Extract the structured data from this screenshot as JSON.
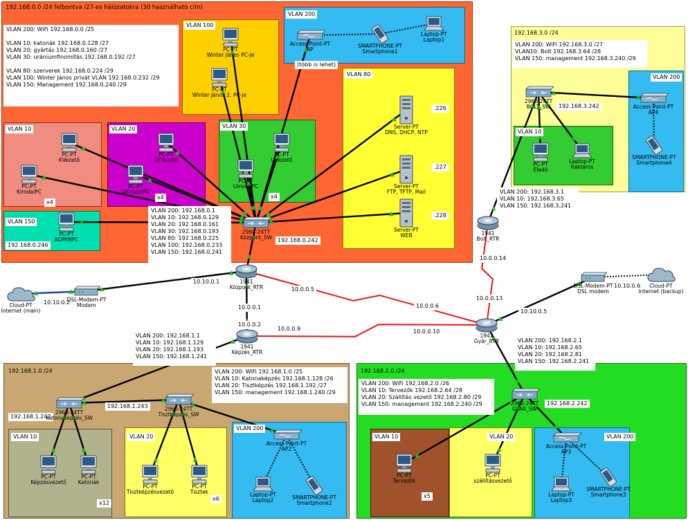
{
  "top_title": "192.168.0.0 /24  felbontva /27-es hálózatokra (30 használható cím)",
  "kozpont_info": [
    "VLAN 200: WiFi 192.168.0.0 /25",
    "",
    "VLAN 10: katonák 192.168.0.128 /27",
    "VLAN 20: gyártás 192.168.0.160 /27",
    "VLAN 30: urániumfinomítás 192.168.0.192 /27",
    "",
    "VLAN 80: szerverek 192.168.0.224 /29",
    "VLAN 100: Winter János privát VLAN 192.168.0.232 /29",
    "VLAN 150: Management 192.168.0.240 /29"
  ],
  "kozpont_sw_ips": [
    "VLAN 200: 192.168.0.1",
    "VLAN 10: 192.168.0.129",
    "VLAN 20: 192.168.0.161",
    "VLAN 30: 192.168.0.193",
    "VLAN 80: 192.168.0.225",
    "VLAN 100: 192.168.0.233",
    "VLAN 150: 192.168.0.241"
  ],
  "bolt_title": "192.168.3.0 /24",
  "bolt_info": [
    "VLAN 200: WiFi 192.168.3.0 /27",
    "VLAN10: Bolt 192.168.3.64 /28",
    "VLAN 150: management 192.168.3.240 /29"
  ],
  "bolt_rtr_ips": [
    "VLAN 200: 192.168.3.1",
    "VLAN 10: 192.168.3.65",
    "VLAN 150: 192.168.3.241"
  ],
  "kepzes_rtr_ips": [
    "VLAN 200: 192.168.1.1",
    "VLAN 10: 192.168.1.129",
    "VLAN 20: 192.168.1.193",
    "VLAN 150: 192.168.1.241"
  ],
  "kepzes_title": "192.168.1.0 /24",
  "kepzes_info": [
    "VLAN 200: WiFi 192.168.1.0 /25",
    "VLAN 10: Katonaképzés 192.168.1.128 /26",
    "VLAN 20: Tisztképzés 192.168.1.192 /27",
    "VLAN 150: management 192.168.1.240 /29"
  ],
  "gyar_rtr_ips": [
    "VLAN 200: 192.168.2.1",
    "VLAN 10: 192.168.2.65",
    "VLAN 20: 192.168.2.81",
    "VLAN 150: 192.168.2.241"
  ],
  "gyar_title": "192.168.2.0 /24",
  "gyar_info": [
    "VLAN 200: WiFi 192.168.2.0 /26",
    "VLAN 10: Tervezők 192.168.2.64 /28",
    "VLAN 20: Szállítás vezető  192.168.2.80 /29",
    "VLAN 150: management 192.168.2.240 /29"
  ],
  "vlan_labels": {
    "k100": "VLAN 100",
    "k200": "VLAN 200",
    "k10": "VLAN 10",
    "k20": "VLAN 20",
    "k30": "VLAN 30",
    "k80": "VLAN 80",
    "k150": "VLAN 150",
    "b10": "VLAN 10",
    "b200": "VLAN 200",
    "e10": "VLAN 10",
    "e20": "VLAN 20",
    "e200": "VLAN 200",
    "g10": "VLAN 10",
    "g20": "VLAN 20",
    "g200": "VLAN 200"
  },
  "devices": {
    "winter1": [
      "PC-PT",
      "Winter János PC-je"
    ],
    "winter2": [
      "PC-PT",
      "Winter János 2. PC-je"
    ],
    "ap": [
      "Access Point-PT",
      "AP"
    ],
    "smartphone1": [
      "SMARTPHONE-PT",
      "Smartphone1"
    ],
    "laptop1": [
      "Laptop-PT",
      "Laptop1"
    ],
    "kvezeto": [
      "PC-PT",
      "KVezető"
    ],
    "kirodaipc": [
      "PC-PT",
      "KirodaiPC"
    ],
    "gyvezeto": [
      "PC-PT",
      "GYVezető"
    ],
    "gyirodaipc": [
      "PC-PT",
      "GYirodaiPC"
    ],
    "uvezeto": [
      "PC-PT",
      "UVezető"
    ],
    "urodaipc": [
      "PC-PT",
      "UirodaiPC"
    ],
    "dns": [
      "Server-PT",
      "DNS, DHCP, NTP"
    ],
    "ftp": [
      "Server-PT",
      "FTP, TFTP, Mail"
    ],
    "web": [
      "Server-PT",
      "WEB"
    ],
    "adminpc": [
      "PC-PT",
      "ADMINPC"
    ],
    "kozpont_sw": [
      "2960-24TT",
      "Központ_SW"
    ],
    "kozpont_rtr": [
      "1941",
      "Központ_RTR"
    ],
    "cloud_main": [
      "Cloud-PT",
      "Internet (main)"
    ],
    "modem": [
      "DSL-Modem-PT",
      "Modem"
    ],
    "kepzes_rtr": [
      "1941",
      "Képzés_RTR"
    ],
    "bolt_rtr": [
      "1941",
      "Bolt_RTR"
    ],
    "bolt_sw": [
      "2960-24TT",
      "BOLT_SW"
    ],
    "elado": [
      "PC-PT",
      "Eladó"
    ],
    "raktaros": [
      "Laptop-PT",
      "Raktáros"
    ],
    "ap4": [
      "Access Point-PT",
      "AP4"
    ],
    "smartphone4": [
      "SMARTPHONE-PT",
      "Smartphone4"
    ],
    "gyar_rtr": [
      "1941",
      "Gyár_RTR"
    ],
    "dsl_modem": [
      "DSL-Modem-PT",
      "DSL modem"
    ],
    "cloud_backup": [
      "Cloud-PT",
      "Internet (backup)"
    ],
    "katonakepzes_sw": [
      "2960-24TT",
      "Katonaképzés_SW"
    ],
    "tisztkepzes_sw": [
      "2960-24TT",
      "Tisztképzés_SW"
    ],
    "kepzesvezeto": [
      "PC-PT",
      "Képzésvezető"
    ],
    "katonak": [
      "PC-PT",
      "Katonák"
    ],
    "tisztkepzesvezeto": [
      "PC-PT",
      "Tisztképzésvezető"
    ],
    "tisztek": [
      "PC-PT",
      "Tisztek"
    ],
    "ap2": [
      "Access Point-PT",
      "AP2"
    ],
    "laptop2": [
      "Laptop-PT",
      "Laptop2"
    ],
    "smartphone2": [
      "SMARTPHONE-PT",
      "Smartphone2"
    ],
    "gyar_sw": [
      "2960-24TT",
      "GYAR_SW"
    ],
    "tervezok": [
      "PC-PT",
      "Tervezők"
    ],
    "szallitasvezeto": [
      "PC-PT",
      "szállításvezető"
    ],
    "ap3": [
      "Access Point-PT",
      "AP3"
    ],
    "laptop3": [
      "Laptop-PT",
      "Laptop3"
    ],
    "smartphone3": [
      "SMARTPHONE-PT",
      "Smartphone3"
    ]
  },
  "labels": {
    "tobb_is_lehet": "(több is lehet)",
    "ip226": ".226",
    "ip227": ".227",
    "ip228": ".228",
    "x4_k": "x4",
    "x4_gy": "x4",
    "x4_u": "x4",
    "ip_admin": "192.168.0.246",
    "ip_ksw": "192.168.0.242",
    "ip_10_10_0_1": "10.10.0.1",
    "ip_10_10_0_2": "10.10.0.2",
    "ip_10_0_0_5": "10.0.0.5",
    "ip_10_0_0_6": "10.0.0.6",
    "ip_10_0_0_1": "10.0.0.1",
    "ip_10_0_0_2": "10.0.0.2",
    "ip_10_0_0_9": "10.0.0.9",
    "ip_10_0_0_10": "10.0.0.10",
    "ip_10_0_0_13": "10.0.0.13",
    "ip_10_0_0_14": "10.0.0.14",
    "ip_10_10_0_5": "10.10.0.5",
    "ip_10_10_0_6": "10.10.0.6",
    "ip_bolt_sw": "192.168.3.242",
    "ip_kat_sw": "192.168.1.242",
    "ip_tiszt_sw": "192.168.1.243",
    "ip_gyar_sw": "192.168.2.242",
    "x12": "x12",
    "x6": "x6",
    "x5": "x5"
  },
  "colors": {
    "kozpont": "#ff6633",
    "winter": "#ffd000",
    "wifi": "#33bbf2",
    "vlan10_k": "#f08c80",
    "vlan20_k": "#cc00cc",
    "vlan30_k": "#33cc33",
    "vlan80_k": "#ffff33",
    "vlan150_k": "#00e0b0",
    "bolt": "#ffff99",
    "bolt_vlan10": "#33cc33",
    "kepzes": "#c8a773",
    "kepzes_vlan10": "#b2b28c",
    "kepzes_vlan20": "#ffff66",
    "gyar": "#22dd22",
    "gyar_vlan10": "#a0522d",
    "gyar_vlan20": "#ffff66",
    "wan_link": "#ee1111",
    "lan_link": "#000000",
    "port_up": "#22bb22"
  }
}
